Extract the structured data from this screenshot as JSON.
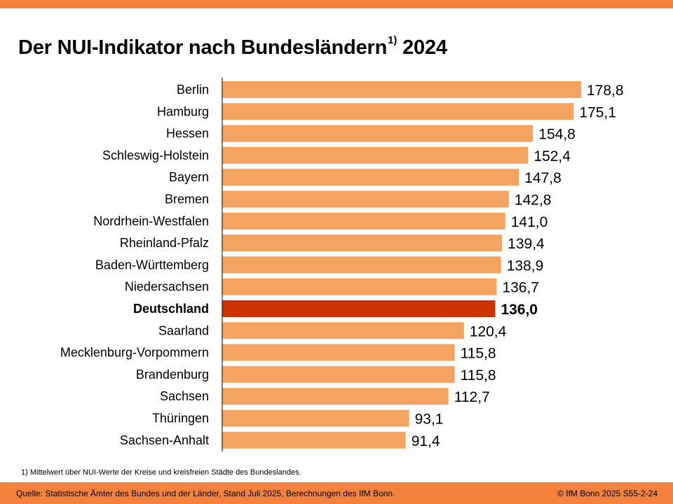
{
  "title": {
    "text": "Der NUI-Indikator nach Bundesländern",
    "footnote_ref": "1)",
    "year": "2024"
  },
  "footnote": "1) Mittelwert über NUI-Werte der Kreise und kreisfreien Städte des Bundeslandes.",
  "footer": {
    "source": "Quelle: Statistische Ämter des Bundes und der Länder, Stand Juli 2025, Berechnungen des IfM Bonn.",
    "copyright": "© IfM Bonn 2025  S55-2-24"
  },
  "colors": {
    "accent": "#F5823C",
    "bar": "#F4A460",
    "highlight": "#CC3300"
  },
  "chart_data": {
    "type": "bar",
    "orientation": "horizontal",
    "categories": [
      "Berlin",
      "Hamburg",
      "Hessen",
      "Schleswig-Holstein",
      "Bayern",
      "Bremen",
      "Nordrhein-Westfalen",
      "Rheinland-Pfalz",
      "Baden-Württemberg",
      "Niedersachsen",
      "Deutschland",
      "Saarland",
      "Mecklenburg-Vorpommern",
      "Brandenburg",
      "Sachsen",
      "Thüringen",
      "Sachsen-Anhalt"
    ],
    "values": [
      178.8,
      175.1,
      154.8,
      152.4,
      147.8,
      142.8,
      141.0,
      139.4,
      138.9,
      136.7,
      136.0,
      120.4,
      115.8,
      115.8,
      112.7,
      93.1,
      91.4
    ],
    "value_labels": [
      "178,8",
      "175,1",
      "154,8",
      "152,4",
      "147,8",
      "142,8",
      "141,0",
      "139,4",
      "138,9",
      "136,7",
      "136,0",
      "120,4",
      "115,8",
      "115,8",
      "112,7",
      "93,1",
      "91,4"
    ],
    "highlight": "Deutschland",
    "xlim": [
      0,
      180
    ]
  }
}
